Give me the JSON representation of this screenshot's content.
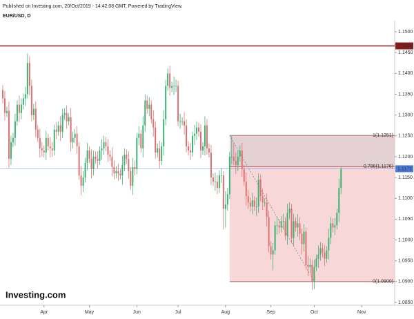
{
  "chart_data": {
    "type": "candlestick",
    "title": "EUR/USD, D",
    "source": "Published on Investing.com, 20/Oct/2019 - 14:42:08 GMT, Powered by TradingView.",
    "brand": "Investing.com",
    "up_color": "#3bb273",
    "down_color": "#e07070",
    "ylim": [
      1.085,
      1.15
    ],
    "yticks": [
      {
        "value": 1.085,
        "label": "1.0850"
      },
      {
        "value": 1.09,
        "label": "1.0900"
      },
      {
        "value": 1.095,
        "label": "1.0950"
      },
      {
        "value": 1.1,
        "label": "1.1000"
      },
      {
        "value": 1.105,
        "label": "1.1050"
      },
      {
        "value": 1.11,
        "label": "1.1100"
      },
      {
        "value": 1.115,
        "label": "1.1150"
      },
      {
        "value": 1.12,
        "label": "1.1200"
      },
      {
        "value": 1.125,
        "label": "1.1250"
      },
      {
        "value": 1.13,
        "label": "1.1300"
      },
      {
        "value": 1.135,
        "label": "1.1350"
      },
      {
        "value": 1.14,
        "label": "1.1400"
      },
      {
        "value": 1.145,
        "label": "1.1450"
      },
      {
        "value": 1.15,
        "label": "1.1500"
      }
    ],
    "xlim": [
      -1,
      190
    ],
    "xticks": [
      {
        "value": 20,
        "label": "Apr"
      },
      {
        "value": 42,
        "label": "May"
      },
      {
        "value": 65,
        "label": "Jun"
      },
      {
        "value": 85,
        "label": "Jul"
      },
      {
        "value": 108,
        "label": "Aug"
      },
      {
        "value": 130,
        "label": "Sep"
      },
      {
        "value": 151,
        "label": "Oct"
      },
      {
        "value": 174,
        "label": "Nov"
      }
    ],
    "hline": 1.1466,
    "hline_color": "#8b1a1a",
    "last_price": 1.1171,
    "last_price_color": "#4a7bd8",
    "fib": {
      "anchors": [
        110,
        151
      ],
      "levels": [
        {
          "value": 1.1251,
          "label": "1(1.1251)"
        },
        {
          "value": 1.1176,
          "label": "0.786(1.1176)"
        },
        {
          "value": 1.09,
          "label": "0(1.0900)"
        }
      ],
      "colors": [
        "#d9c2c4",
        "#f4c9cb"
      ],
      "line_color": "#b0646a"
    },
    "candles": {
      "open": [
        1.136,
        1.134,
        1.1305,
        1.131,
        1.1195,
        1.1235,
        1.1245,
        1.1285,
        1.1325,
        1.1305,
        1.1325,
        1.134,
        1.135,
        1.1425,
        1.137,
        1.13,
        1.1315,
        1.1265,
        1.1245,
        1.122,
        1.1215,
        1.121,
        1.1245,
        1.1225,
        1.122,
        1.1215,
        1.1265,
        1.126,
        1.1275,
        1.126,
        1.13,
        1.1305,
        1.1285,
        1.1295,
        1.1235,
        1.1245,
        1.1255,
        1.1225,
        1.1155,
        1.113,
        1.115,
        1.1185,
        1.1215,
        1.1195,
        1.117,
        1.12,
        1.1195,
        1.119,
        1.1215,
        1.122,
        1.1235,
        1.1225,
        1.1205,
        1.12,
        1.1175,
        1.116,
        1.1165,
        1.116,
        1.1155,
        1.118,
        1.1205,
        1.1195,
        1.1165,
        1.113,
        1.1175,
        1.117,
        1.1245,
        1.1255,
        1.122,
        1.1275,
        1.1335,
        1.1315,
        1.1325,
        1.129,
        1.127,
        1.121,
        1.122,
        1.119,
        1.1225,
        1.129,
        1.137,
        1.14,
        1.1365,
        1.137,
        1.137,
        1.137,
        1.1285,
        1.1285,
        1.1285,
        1.1275,
        1.1225,
        1.1215,
        1.121,
        1.125,
        1.1255,
        1.127,
        1.126,
        1.1215,
        1.1225,
        1.1275,
        1.122,
        1.121,
        1.115,
        1.114,
        1.114,
        1.1125,
        1.1155,
        1.1155,
        1.1075,
        1.1085,
        1.111,
        1.12,
        1.12,
        1.119,
        1.118,
        1.12,
        1.1215,
        1.117,
        1.114,
        1.1105,
        1.109,
        1.108,
        1.1095,
        1.108,
        1.108,
        1.1145,
        1.1105,
        1.109,
        1.109,
        1.1055,
        1.0985,
        1.0965,
        1.0975,
        1.1035,
        1.1035,
        1.103,
        1.1045,
        1.1045,
        1.101,
        1.1065,
        1.1075,
        1.1005,
        1.1045,
        1.103,
        1.104,
        1.1015,
        1.099,
        1.102,
        1.094,
        1.0935,
        1.094,
        1.09,
        1.0935,
        1.0955,
        1.0965,
        1.098,
        1.097,
        1.0955,
        1.0975,
        1.1005,
        1.104,
        1.103,
        1.1035,
        1.1065,
        1.1125
      ],
      "close": [
        1.134,
        1.1305,
        1.131,
        1.1195,
        1.1235,
        1.1245,
        1.1285,
        1.1325,
        1.1305,
        1.1325,
        1.134,
        1.135,
        1.1425,
        1.137,
        1.13,
        1.1315,
        1.1265,
        1.1245,
        1.122,
        1.1215,
        1.121,
        1.1245,
        1.1225,
        1.122,
        1.1215,
        1.1265,
        1.126,
        1.1275,
        1.126,
        1.13,
        1.1305,
        1.1285,
        1.1295,
        1.1235,
        1.1245,
        1.1255,
        1.1225,
        1.1155,
        1.113,
        1.115,
        1.1185,
        1.1215,
        1.1195,
        1.117,
        1.12,
        1.1195,
        1.119,
        1.1215,
        1.122,
        1.1235,
        1.1225,
        1.1205,
        1.12,
        1.1175,
        1.116,
        1.1165,
        1.116,
        1.1155,
        1.118,
        1.1205,
        1.1195,
        1.1165,
        1.113,
        1.1175,
        1.117,
        1.1245,
        1.1255,
        1.122,
        1.1275,
        1.1335,
        1.1315,
        1.1325,
        1.129,
        1.127,
        1.121,
        1.122,
        1.119,
        1.1225,
        1.129,
        1.137,
        1.14,
        1.1365,
        1.137,
        1.137,
        1.137,
        1.1285,
        1.1285,
        1.1285,
        1.1275,
        1.1225,
        1.1215,
        1.121,
        1.125,
        1.1255,
        1.127,
        1.126,
        1.1215,
        1.1225,
        1.1275,
        1.122,
        1.121,
        1.115,
        1.114,
        1.114,
        1.1125,
        1.1155,
        1.1155,
        1.1075,
        1.1085,
        1.111,
        1.12,
        1.12,
        1.119,
        1.118,
        1.12,
        1.1215,
        1.117,
        1.114,
        1.1105,
        1.109,
        1.108,
        1.1095,
        1.108,
        1.108,
        1.1145,
        1.1105,
        1.109,
        1.109,
        1.1055,
        1.0985,
        1.0965,
        1.0975,
        1.1035,
        1.1035,
        1.103,
        1.1045,
        1.1045,
        1.101,
        1.1065,
        1.1075,
        1.1005,
        1.1045,
        1.103,
        1.104,
        1.1015,
        1.099,
        1.102,
        1.094,
        1.0935,
        1.094,
        1.09,
        1.0935,
        1.0955,
        1.0965,
        1.098,
        1.097,
        1.0955,
        1.0975,
        1.1005,
        1.104,
        1.103,
        1.1035,
        1.1065,
        1.1125,
        1.1171
      ],
      "high": [
        1.1372,
        1.1358,
        1.132,
        1.1332,
        1.125,
        1.1257,
        1.1303,
        1.1335,
        1.1347,
        1.134,
        1.1352,
        1.1368,
        1.1448,
        1.144,
        1.1385,
        1.1327,
        1.1333,
        1.1275,
        1.1267,
        1.1235,
        1.1227,
        1.1263,
        1.1255,
        1.1247,
        1.1235,
        1.1277,
        1.1283,
        1.1285,
        1.1297,
        1.1315,
        1.1317,
        1.1323,
        1.1305,
        1.1317,
        1.126,
        1.1267,
        1.1273,
        1.1235,
        1.1177,
        1.1165,
        1.1197,
        1.1233,
        1.1225,
        1.1217,
        1.1215,
        1.1212,
        1.1213,
        1.1225,
        1.1242,
        1.125,
        1.1247,
        1.1243,
        1.1215,
        1.1222,
        1.119,
        1.1177,
        1.1183,
        1.117,
        1.1202,
        1.122,
        1.1217,
        1.1213,
        1.1175,
        1.1197,
        1.119,
        1.1257,
        1.1273,
        1.1265,
        1.1297,
        1.135,
        1.1347,
        1.1343,
        1.1335,
        1.1312,
        1.1285,
        1.1232,
        1.1238,
        1.1235,
        1.1312,
        1.1385,
        1.1412,
        1.1418,
        1.138,
        1.1392,
        1.1385,
        1.1382,
        1.1303,
        1.1295,
        1.1307,
        1.129,
        1.1237,
        1.1233,
        1.126,
        1.1277,
        1.1285,
        1.1282,
        1.1278,
        1.1235,
        1.1297,
        1.129,
        1.1232,
        1.1228,
        1.116,
        1.1162,
        1.1155,
        1.1167,
        1.1173,
        1.1165,
        1.1117,
        1.1125,
        1.1212,
        1.125,
        1.1235,
        1.121,
        1.1215,
        1.1227,
        1.1233,
        1.118,
        1.1162,
        1.112,
        1.1102,
        1.1113,
        1.1105,
        1.1102,
        1.116,
        1.1157,
        1.1123,
        1.11,
        1.1112,
        1.107,
        1.0997,
        1.0993,
        1.1045,
        1.1057,
        1.105,
        1.1057,
        1.1063,
        1.1055,
        1.1087,
        1.109,
        1.1087,
        1.1063,
        1.1055,
        1.1062,
        1.1055,
        1.1027,
        1.1038,
        1.103,
        1.0962,
        1.0955,
        1.0952,
        1.0953,
        1.0965,
        1.0987,
        1.0995,
        1.0992,
        1.0988,
        1.0985,
        1.1027,
        1.1055,
        1.1052,
        1.1053,
        1.1075,
        1.1147,
        1.1175
      ],
      "low": [
        1.1328,
        1.1287,
        1.1295,
        1.1173,
        1.118,
        1.1223,
        1.1227,
        1.1275,
        1.1283,
        1.129,
        1.1313,
        1.1322,
        1.134,
        1.1348,
        1.1285,
        1.1288,
        1.1247,
        1.1235,
        1.1198,
        1.12,
        1.1198,
        1.1192,
        1.1215,
        1.1198,
        1.12,
        1.1203,
        1.1242,
        1.125,
        1.1238,
        1.1245,
        1.1288,
        1.1267,
        1.1275,
        1.1213,
        1.122,
        1.1233,
        1.1207,
        1.1145,
        1.1108,
        1.1115,
        1.1138,
        1.1167,
        1.1185,
        1.1148,
        1.1155,
        1.1183,
        1.1172,
        1.118,
        1.1193,
        1.1205,
        1.1213,
        1.1187,
        1.119,
        1.1153,
        1.1145,
        1.1148,
        1.1142,
        1.1145,
        1.1133,
        1.1165,
        1.1183,
        1.1147,
        1.112,
        1.1108,
        1.1155,
        1.1158,
        1.1227,
        1.121,
        1.1198,
        1.126,
        1.1303,
        1.1297,
        1.128,
        1.1248,
        1.1195,
        1.1198,
        1.1172,
        1.118,
        1.1203,
        1.1275,
        1.1358,
        1.1347,
        1.1355,
        1.1348,
        1.1355,
        1.1273,
        1.1267,
        1.1275,
        1.1253,
        1.121,
        1.1203,
        1.1192,
        1.12,
        1.1228,
        1.124,
        1.1248,
        1.1197,
        1.1205,
        1.1203,
        1.1205,
        1.1198,
        1.1132,
        1.113,
        1.1118,
        1.111,
        1.1113,
        1.1137,
        1.1025,
        1.103,
        1.107,
        1.1098,
        1.1182,
        1.118,
        1.1158,
        1.1165,
        1.1188,
        1.1152,
        1.113,
        1.1083,
        1.1075,
        1.1068,
        1.1062,
        1.107,
        1.1058,
        1.1065,
        1.1093,
        1.1072,
        1.108,
        1.1033,
        1.097,
        1.0953,
        1.0927,
        1.0965,
        1.1013,
        1.1015,
        1.1018,
        1.1027,
        1.1,
        1.0988,
        1.105,
        1.0993,
        1.0987,
        1.102,
        1.1008,
        1.1,
        1.0965,
        1.0972,
        1.093,
        1.0913,
        1.092,
        1.088,
        1.0882,
        1.0925,
        1.0933,
        1.095,
        1.0958,
        1.0937,
        1.0945,
        1.0953,
        1.099,
        1.1018,
        1.1012,
        1.1025,
        1.1043,
        1.111
      ]
    }
  }
}
